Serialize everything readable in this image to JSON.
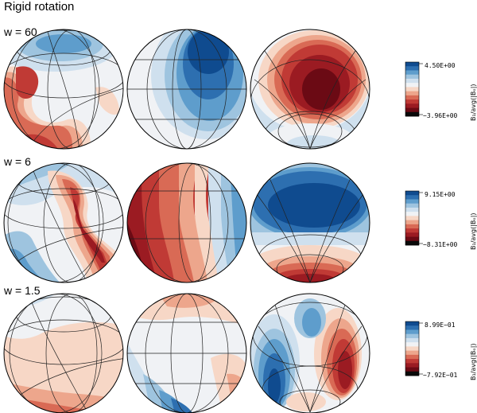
{
  "figure": {
    "title": "Rigid rotation",
    "colorbar_axis_label": "B₁/avg(|Bₒ|)",
    "palette": [
      "#0a0a0a",
      "#6b0a14",
      "#9b1b22",
      "#c03a35",
      "#d96a55",
      "#eda68c",
      "#f7d7c6",
      "#f0f2f5",
      "#cfe0ee",
      "#9ec4df",
      "#5e9dcc",
      "#2d6fb0",
      "#0f4b8f"
    ]
  },
  "rows": [
    {
      "label": "w = 60",
      "colorbar": {
        "max_label": "4.50E+00",
        "min_label": "−3.96E+00"
      }
    },
    {
      "label": "w = 6",
      "colorbar": {
        "max_label": "9.15E+00",
        "min_label": "−8.31E+00"
      }
    },
    {
      "label": "w = 1.5",
      "colorbar": {
        "max_label": "8.99E−01",
        "min_label": "−7.92E−01"
      }
    }
  ]
}
